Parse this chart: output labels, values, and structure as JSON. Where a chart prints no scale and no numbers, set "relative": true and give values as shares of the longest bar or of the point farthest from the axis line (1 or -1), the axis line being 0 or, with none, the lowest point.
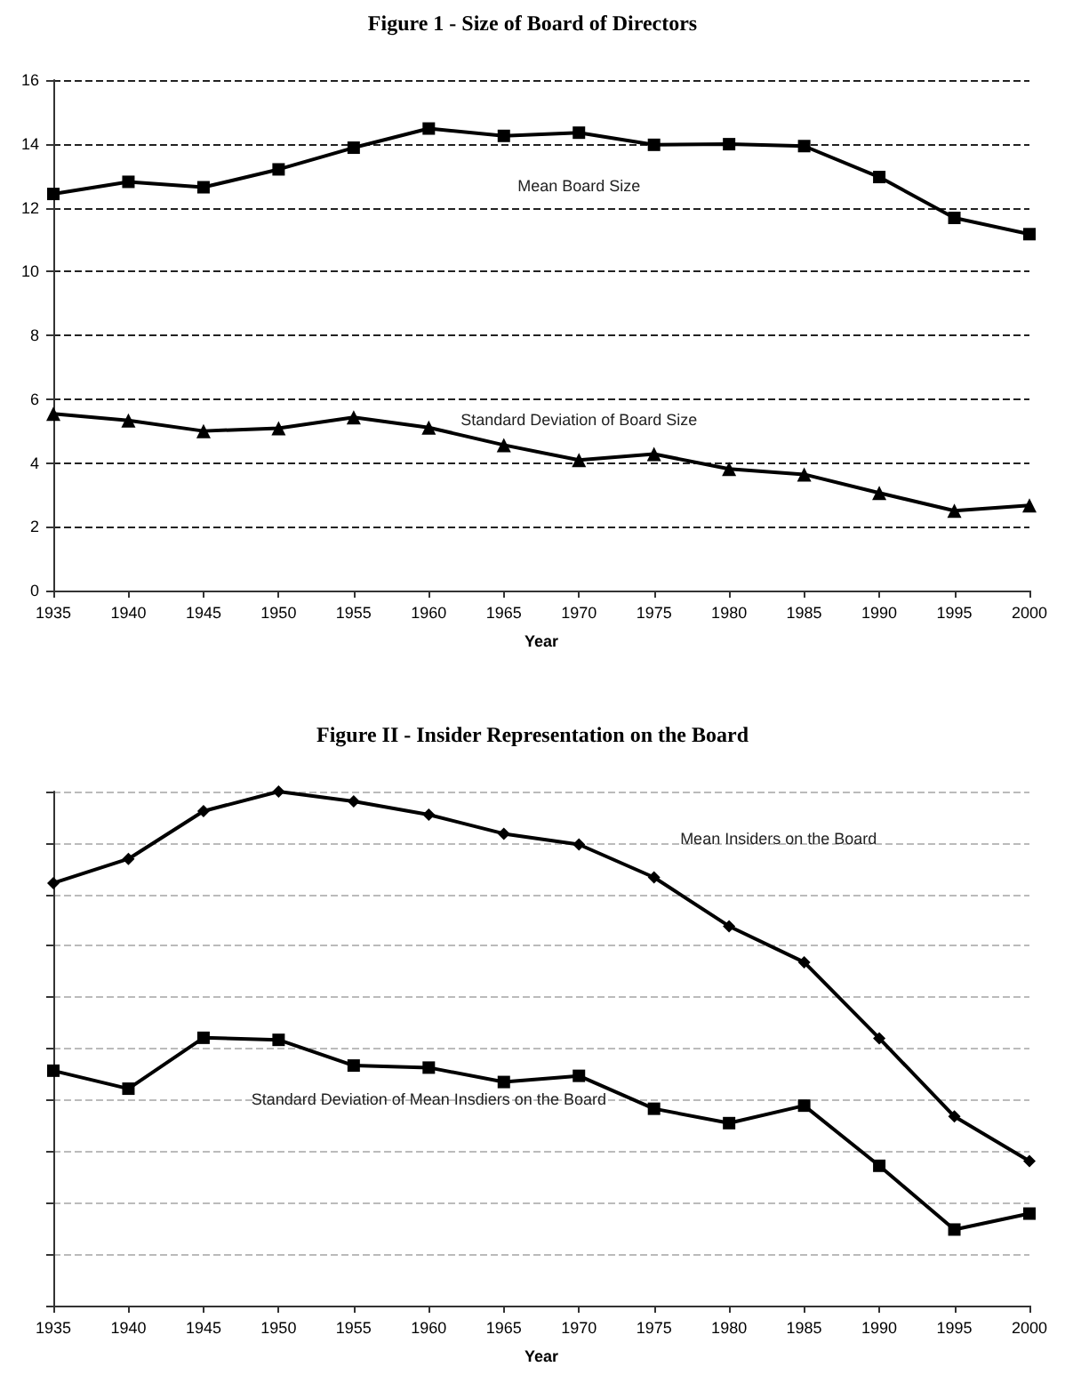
{
  "chart_data": [
    {
      "type": "line",
      "title": "Figure 1 - Size of Board of Directors",
      "xlabel": "Year",
      "x": [
        1935,
        1940,
        1945,
        1950,
        1955,
        1960,
        1965,
        1970,
        1975,
        1980,
        1985,
        1990,
        1995,
        2000
      ],
      "series": [
        {
          "name": "Mean Board Size",
          "color": "#000000",
          "marker": "square",
          "values": [
            12.43,
            12.81,
            12.64,
            13.2,
            13.88,
            14.48,
            14.25,
            14.35,
            13.97,
            13.99,
            13.93,
            12.96,
            11.68,
            11.17
          ]
        },
        {
          "name": "Standard Deviation of Board Size",
          "color": "#000000",
          "marker": "triangle",
          "values": [
            5.54,
            5.33,
            5.0,
            5.09,
            5.43,
            5.11,
            4.56,
            4.09,
            4.28,
            3.81,
            3.64,
            3.06,
            2.5,
            2.67
          ]
        }
      ],
      "xlim": [
        1935,
        2000
      ],
      "xticks": [
        1935,
        1940,
        1945,
        1950,
        1955,
        1960,
        1965,
        1970,
        1975,
        1980,
        1985,
        1990,
        1995,
        2000
      ],
      "ylim": [
        0,
        16
      ],
      "yticks": [
        0,
        2,
        4,
        6,
        8,
        10,
        12,
        14,
        16
      ],
      "grid": "y",
      "legend": false
    },
    {
      "type": "line",
      "title": "Figure II - Insider Representation on the Board",
      "xlabel": "Year",
      "relative": true,
      "x": [
        1935,
        1940,
        1945,
        1950,
        1955,
        1960,
        1965,
        1970,
        1975,
        1980,
        1985,
        1990,
        1995,
        2000
      ],
      "series": [
        {
          "name": "Mean Insiders on the Board",
          "color": "#000000",
          "marker": "diamond",
          "values": [
            0.822,
            0.869,
            0.962,
            1,
            0.981,
            0.955,
            0.918,
            0.897,
            0.833,
            0.738,
            0.668,
            0.52,
            0.368,
            0.281
          ]
        },
        {
          "name": "Standard Deviation of Mean Insdiers on the Board",
          "color": "#000000",
          "marker": "square",
          "values": [
            0.457,
            0.422,
            0.521,
            0.517,
            0.467,
            0.463,
            0.435,
            0.447,
            0.383,
            0.355,
            0.389,
            0.272,
            0.148,
            0.179
          ]
        }
      ],
      "xlim": [
        1935,
        2000
      ],
      "xticks": [
        1935,
        1940,
        1945,
        1950,
        1955,
        1960,
        1965,
        1970,
        1975,
        1980,
        1985,
        1990,
        1995,
        2000
      ],
      "grid": "y",
      "legend": false
    }
  ]
}
